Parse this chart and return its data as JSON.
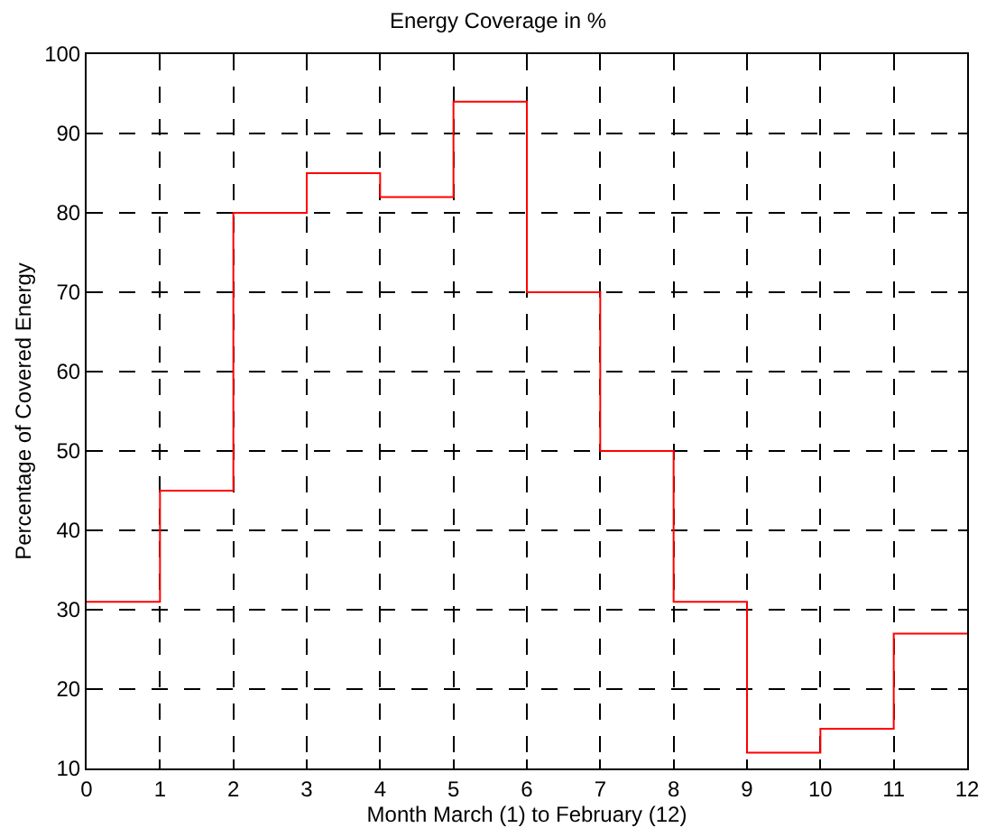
{
  "chart_data": {
    "type": "step",
    "title": "Energy Coverage in %",
    "xlabel": "Month March (1) to February (12)",
    "ylabel": "Percentage of Covered Energy",
    "x": [
      0,
      1,
      2,
      3,
      4,
      5,
      6,
      7,
      8,
      9,
      10,
      11,
      12
    ],
    "series": [
      {
        "color": "#ff0000",
        "values": [
          31,
          45,
          80,
          85,
          82,
          94,
          70,
          50,
          31,
          12,
          15,
          27,
          27
        ]
      }
    ],
    "xlim": [
      0,
      12
    ],
    "xticks": [
      0,
      1,
      2,
      3,
      4,
      5,
      6,
      7,
      8,
      9,
      10,
      11,
      12
    ],
    "ylim": [
      10,
      100
    ],
    "yticks": [
      10,
      20,
      30,
      40,
      50,
      60,
      70,
      80,
      90,
      100
    ],
    "grid": true,
    "legend": false,
    "line_style": "solid",
    "marker": "none"
  }
}
